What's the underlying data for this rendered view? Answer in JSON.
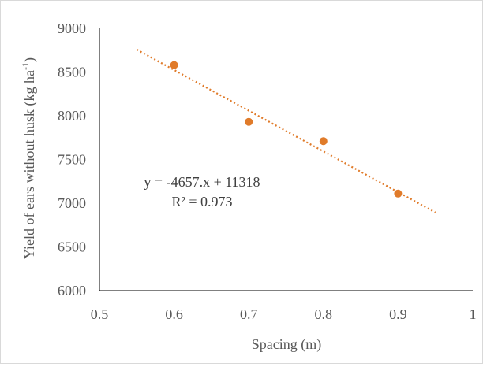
{
  "chart_data": {
    "type": "scatter",
    "title": "",
    "xlabel": "Spacing (m)",
    "ylabel": "Yield of ears without husk (kg ha",
    "ylabel_sup": "-1",
    "ylabel_close": ")",
    "xlim": [
      0.5,
      1.0
    ],
    "ylim": [
      6000,
      9000
    ],
    "x_ticks": [
      0.5,
      0.6,
      0.7,
      0.8,
      0.9,
      1.0
    ],
    "x_tick_labels": [
      "0.5",
      "0.6",
      "0.7",
      "0.8",
      "0.9",
      "1"
    ],
    "y_ticks": [
      6000,
      6500,
      7000,
      7500,
      8000,
      8500,
      9000
    ],
    "y_tick_labels": [
      "6000",
      "6500",
      "7000",
      "7500",
      "8000",
      "8500",
      "9000"
    ],
    "grid": false,
    "legend": "none",
    "series": [
      {
        "x": [
          0.6,
          0.7,
          0.8,
          0.9
        ],
        "y": [
          8580,
          7930,
          7710,
          7110
        ],
        "color": "#e07b2a"
      }
    ],
    "trendline": {
      "type": "linear",
      "slope": -4657,
      "intercept": 11318,
      "x_range": [
        0.55,
        0.95
      ],
      "style": "dotted",
      "color": "#e07b2a",
      "equation_text": "y = -4657.x + 11318",
      "r2_text": "R² = 0.973"
    }
  }
}
